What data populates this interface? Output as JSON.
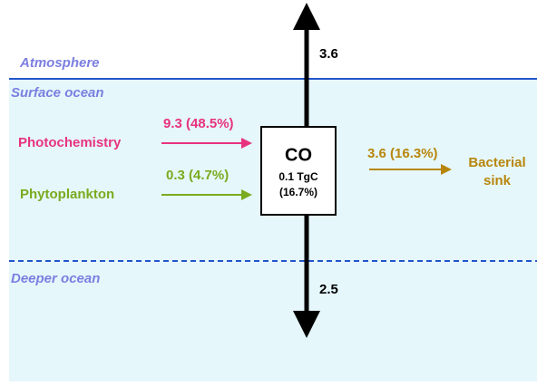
{
  "regions": {
    "atmosphere": "Atmosphere",
    "surface": "Surface ocean",
    "deep": "Deeper ocean"
  },
  "box": {
    "title": "CO",
    "amount": "0.1 TgC",
    "share": "(16.7%)"
  },
  "sources": [
    {
      "name": "Photochemistry",
      "flux": "9.3 (48.5%)"
    },
    {
      "name": "Phytoplankton",
      "flux": "0.3 (4.7%)"
    }
  ],
  "sink": {
    "name_line1": "Bacterial",
    "name_line2": "sink",
    "flux": "3.6 (16.3%)"
  },
  "outgassing": "3.6",
  "export": "2.5"
}
